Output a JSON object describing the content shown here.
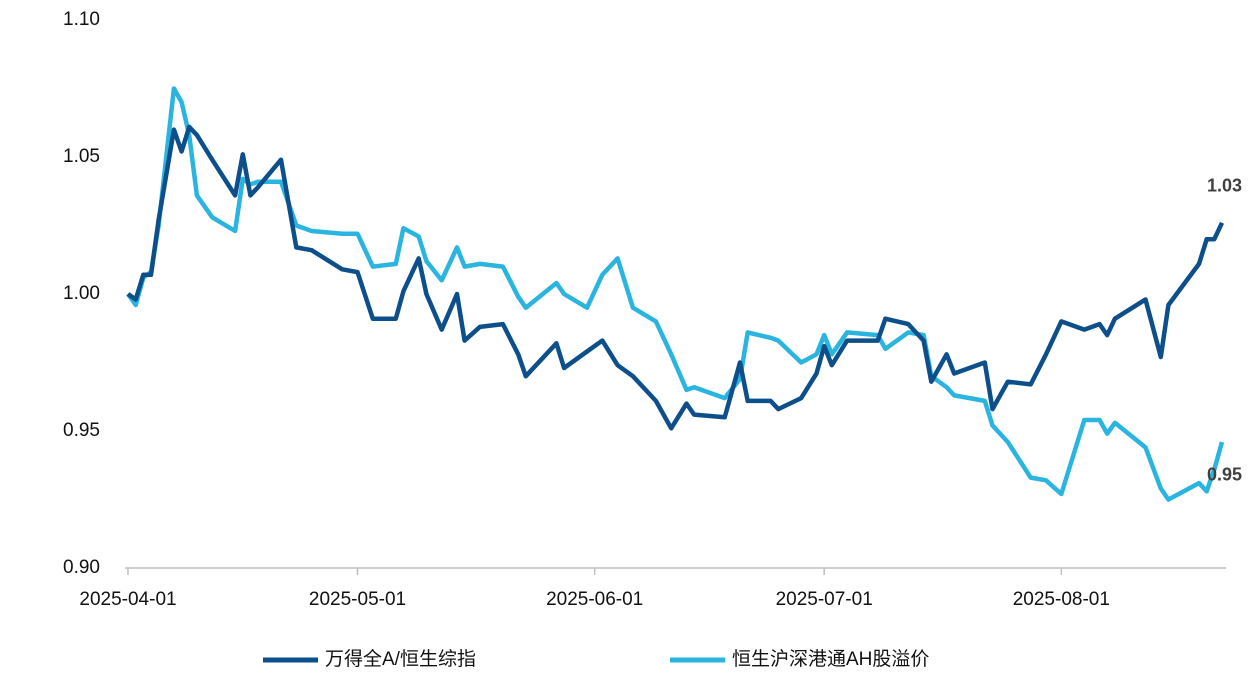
{
  "chart_data": {
    "type": "line",
    "x": [
      "2025-04-01",
      "2025-04-02",
      "2025-04-03",
      "2025-04-04",
      "2025-04-05",
      "2025-04-07",
      "2025-04-08",
      "2025-04-09",
      "2025-04-10",
      "2025-04-12",
      "2025-04-15",
      "2025-04-16",
      "2025-04-17",
      "2025-04-18",
      "2025-04-21",
      "2025-04-23",
      "2025-04-25",
      "2025-04-29",
      "2025-05-01",
      "2025-05-03",
      "2025-05-06",
      "2025-05-07",
      "2025-05-09",
      "2025-05-10",
      "2025-05-12",
      "2025-05-14",
      "2025-05-15",
      "2025-05-17",
      "2025-05-20",
      "2025-05-22",
      "2025-05-23",
      "2025-05-27",
      "2025-05-28",
      "2025-05-31",
      "2025-06-02",
      "2025-06-04",
      "2025-06-06",
      "2025-06-09",
      "2025-06-11",
      "2025-06-13",
      "2025-06-14",
      "2025-06-18",
      "2025-06-20",
      "2025-06-21",
      "2025-06-24",
      "2025-06-25",
      "2025-06-28",
      "2025-06-30",
      "2025-07-01",
      "2025-07-02",
      "2025-07-04",
      "2025-07-08",
      "2025-07-09",
      "2025-07-12",
      "2025-07-14",
      "2025-07-15",
      "2025-07-17",
      "2025-07-18",
      "2025-07-22",
      "2025-07-23",
      "2025-07-25",
      "2025-07-28",
      "2025-07-30",
      "2025-08-01",
      "2025-08-04",
      "2025-08-06",
      "2025-08-07",
      "2025-08-08",
      "2025-08-12",
      "2025-08-14",
      "2025-08-15",
      "2025-08-19",
      "2025-08-20",
      "2025-08-21",
      "2025-08-22"
    ],
    "series": [
      {
        "name": "万得全A/恒生综指",
        "color": "#0d4f8b",
        "values": [
          1.0,
          0.998,
          1.007,
          1.007,
          1.027,
          1.06,
          1.052,
          1.061,
          1.058,
          1.049,
          1.036,
          1.051,
          1.036,
          1.039,
          1.049,
          1.017,
          1.016,
          1.009,
          1.008,
          0.991,
          0.991,
          1.001,
          1.013,
          1.0,
          0.987,
          1.0,
          0.983,
          0.988,
          0.989,
          0.978,
          0.97,
          0.982,
          0.973,
          0.979,
          0.983,
          0.974,
          0.97,
          0.961,
          0.951,
          0.96,
          0.956,
          0.955,
          0.975,
          0.961,
          0.961,
          0.958,
          0.962,
          0.971,
          0.981,
          0.974,
          0.983,
          0.983,
          0.991,
          0.989,
          0.983,
          0.968,
          0.978,
          0.971,
          0.975,
          0.958,
          0.968,
          0.967,
          0.978,
          0.99,
          0.987,
          0.989,
          0.985,
          0.991,
          0.998,
          0.977,
          0.996,
          1.011,
          1.02,
          1.02,
          1.026
        ],
        "value_labels": [
          null,
          null,
          null,
          null,
          null,
          null,
          null,
          null,
          null,
          null,
          null,
          null,
          null,
          null,
          null,
          null,
          null,
          null,
          null,
          null,
          null,
          null,
          null,
          null,
          null,
          null,
          null,
          null,
          null,
          null,
          null,
          null,
          null,
          null,
          null,
          null,
          null,
          null,
          null,
          null,
          null,
          null,
          null,
          null,
          null,
          null,
          null,
          null,
          null,
          null,
          null,
          null,
          null,
          null,
          null,
          null,
          null,
          null,
          null,
          null,
          null,
          null,
          null,
          null,
          null,
          null,
          null,
          null,
          null,
          null,
          null,
          null,
          null,
          null,
          "1.03"
        ]
      },
      {
        "name": "恒生沪深港通AH股溢价",
        "color": "#2ab4e0",
        "values": [
          1.0,
          0.996,
          1.006,
          1.008,
          1.025,
          1.075,
          1.07,
          1.058,
          1.036,
          1.028,
          1.023,
          1.042,
          1.04,
          1.041,
          1.041,
          1.025,
          1.023,
          1.022,
          1.022,
          1.01,
          1.011,
          1.024,
          1.021,
          1.012,
          1.005,
          1.017,
          1.01,
          1.011,
          1.01,
          0.999,
          0.995,
          1.004,
          1.0,
          0.995,
          1.007,
          1.013,
          0.995,
          0.99,
          0.978,
          0.965,
          0.966,
          0.962,
          0.969,
          0.986,
          0.984,
          0.983,
          0.975,
          0.978,
          0.985,
          0.978,
          0.986,
          0.985,
          0.98,
          0.986,
          0.985,
          0.97,
          0.966,
          0.963,
          0.961,
          0.952,
          0.946,
          0.933,
          0.932,
          0.927,
          0.954,
          0.954,
          0.949,
          0.953,
          0.944,
          0.929,
          0.925,
          0.931,
          0.928,
          0.936,
          0.946
        ],
        "value_labels": [
          null,
          null,
          null,
          null,
          null,
          null,
          null,
          null,
          null,
          null,
          null,
          null,
          null,
          null,
          null,
          null,
          null,
          null,
          null,
          null,
          null,
          null,
          null,
          null,
          null,
          null,
          null,
          null,
          null,
          null,
          null,
          null,
          null,
          null,
          null,
          null,
          null,
          null,
          null,
          null,
          null,
          null,
          null,
          null,
          null,
          null,
          null,
          null,
          null,
          null,
          null,
          null,
          null,
          null,
          null,
          null,
          null,
          null,
          null,
          null,
          null,
          null,
          null,
          null,
          null,
          null,
          null,
          null,
          null,
          null,
          null,
          null,
          null,
          null,
          "0.95"
        ]
      }
    ],
    "xlim": [
      "2025-04-01",
      "2025-08-22"
    ],
    "xticks": [
      "2025-04-01",
      "2025-05-01",
      "2025-06-01",
      "2025-07-01",
      "2025-08-01"
    ],
    "ylim": [
      0.9,
      1.1
    ],
    "yticks": [
      {
        "value": 0.9,
        "label": "0.90"
      },
      {
        "value": 0.95,
        "label": "0.95"
      },
      {
        "value": 1.0,
        "label": "1.00"
      },
      {
        "value": 1.05,
        "label": "1.05"
      },
      {
        "value": 1.1,
        "label": "1.10"
      }
    ],
    "grid": false,
    "legend": "bottom"
  }
}
